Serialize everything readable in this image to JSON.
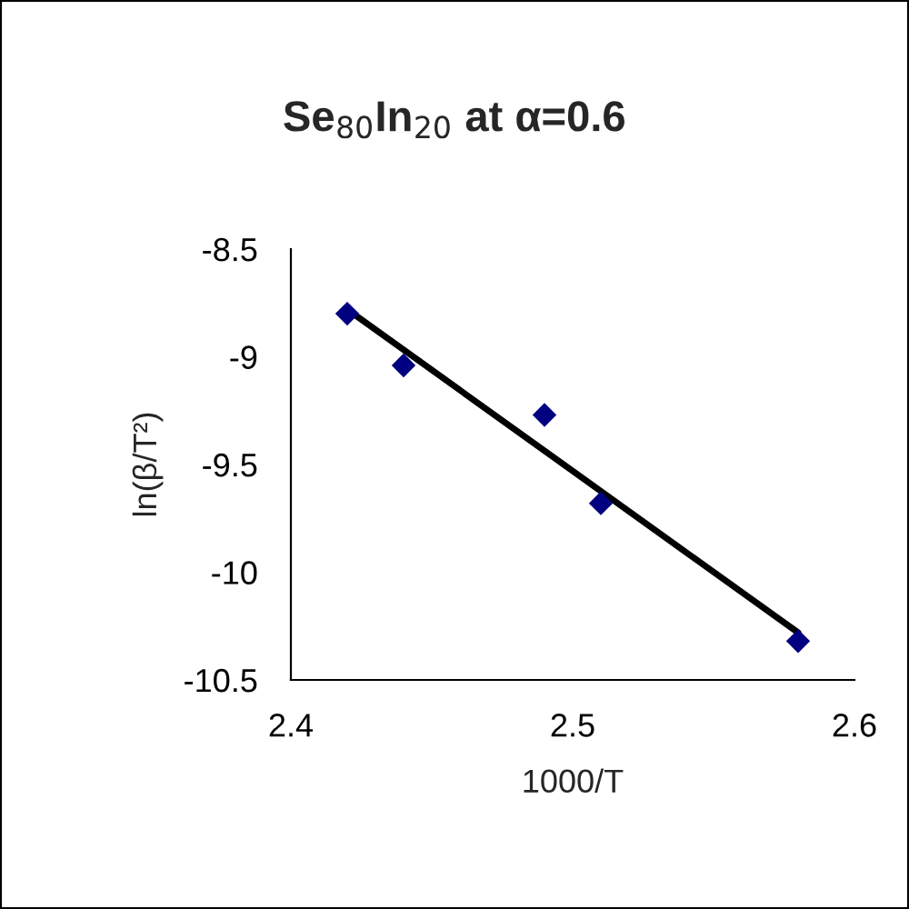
{
  "chart_data": {
    "type": "scatter",
    "title": "Se$_{80}$In$_{20}$ at α=0.6",
    "xlabel": "1000/T",
    "ylabel": "ln(β/T²)",
    "x": [
      2.42,
      2.44,
      2.49,
      2.51,
      2.58
    ],
    "series": [
      {
        "color": "#000080",
        "marker": "diamond",
        "values": [
          -8.8,
          -9.04,
          -9.27,
          -9.68,
          -10.32
        ]
      },
      {
        "type": "line",
        "color": "#000000",
        "marker": "none",
        "line_style": "solid",
        "x": [
          2.42,
          2.58
        ],
        "values": [
          -8.78,
          -10.28
        ]
      }
    ],
    "xlim": [
      2.4,
      2.6
    ],
    "xticks": [
      2.4,
      2.5,
      2.6
    ],
    "ylim": [
      -10.5,
      -8.5
    ],
    "yticks": [
      -10.5,
      -10,
      -9.5,
      -9,
      -8.5
    ],
    "grid": false,
    "legend": false
  }
}
